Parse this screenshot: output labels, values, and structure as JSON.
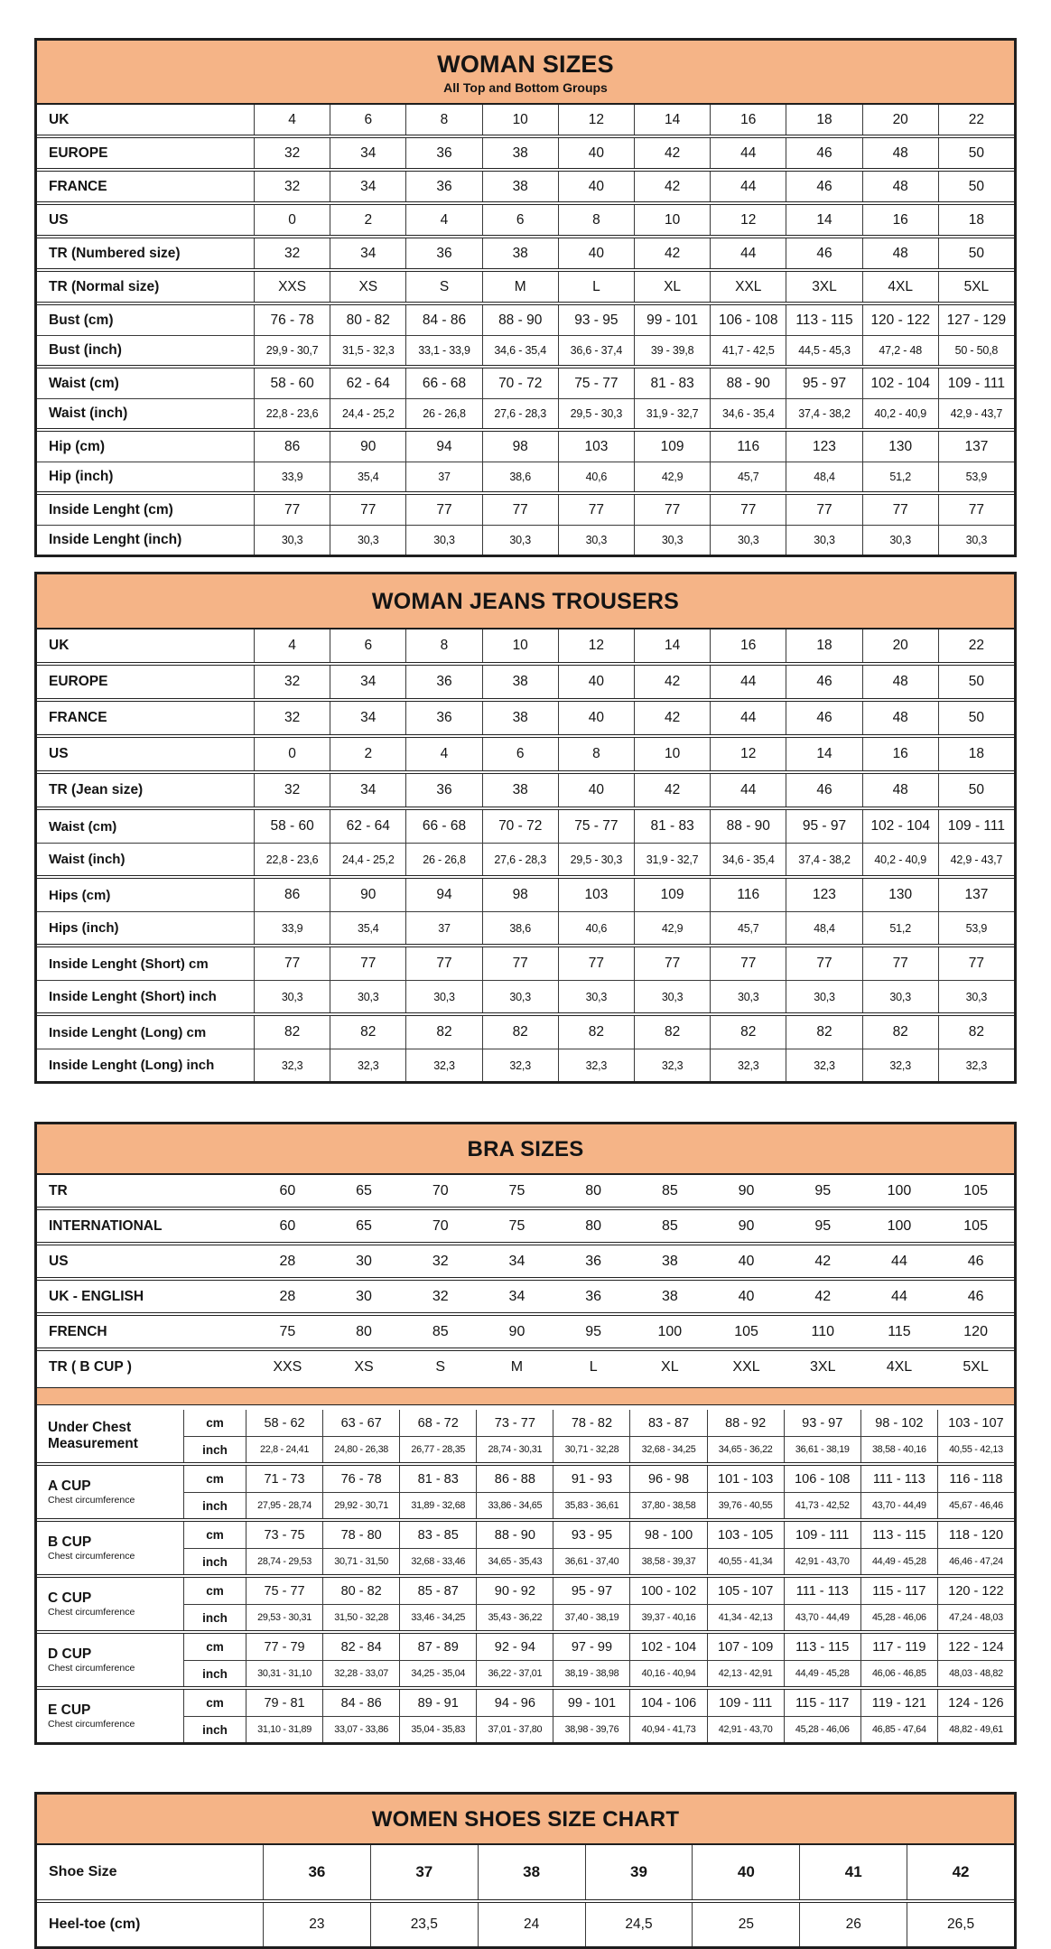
{
  "colors": {
    "header_bg": "#f5b487",
    "border": "#1e1e1e"
  },
  "woman_sizes": {
    "title": "WOMAN SIZES",
    "subtitle": "All Top and Bottom Groups",
    "groups": [
      [
        {
          "label": "UK",
          "values": [
            "4",
            "6",
            "8",
            "10",
            "12",
            "14",
            "16",
            "18",
            "20",
            "22"
          ]
        }
      ],
      [
        {
          "label": "EUROPE",
          "values": [
            "32",
            "34",
            "36",
            "38",
            "40",
            "42",
            "44",
            "46",
            "48",
            "50"
          ]
        }
      ],
      [
        {
          "label": "FRANCE",
          "values": [
            "32",
            "34",
            "36",
            "38",
            "40",
            "42",
            "44",
            "46",
            "48",
            "50"
          ]
        }
      ],
      [
        {
          "label": "US",
          "values": [
            "0",
            "2",
            "4",
            "6",
            "8",
            "10",
            "12",
            "14",
            "16",
            "18"
          ]
        }
      ],
      [
        {
          "label": "TR (Numbered size)",
          "values": [
            "32",
            "34",
            "36",
            "38",
            "40",
            "42",
            "44",
            "46",
            "48",
            "50"
          ]
        }
      ],
      [
        {
          "label": "TR (Normal size)",
          "values": [
            "XXS",
            "XS",
            "S",
            "M",
            "L",
            "XL",
            "XXL",
            "3XL",
            "4XL",
            "5XL"
          ]
        }
      ],
      [
        {
          "label": "Bust (cm)",
          "values": [
            "76 - 78",
            "80 - 82",
            "84 - 86",
            "88 - 90",
            "93 - 95",
            "99 - 101",
            "106 - 108",
            "113 - 115",
            "120 - 122",
            "127 - 129"
          ]
        },
        {
          "label": "Bust (inch)",
          "values": [
            "29,9 - 30,7",
            "31,5 - 32,3",
            "33,1 - 33,9",
            "34,6 - 35,4",
            "36,6 - 37,4",
            "39 - 39,8",
            "41,7 - 42,5",
            "44,5 - 45,3",
            "47,2 - 48",
            "50 - 50,8"
          ]
        }
      ],
      [
        {
          "label": "Waist (cm)",
          "values": [
            "58 - 60",
            "62 - 64",
            "66 - 68",
            "70 - 72",
            "75 - 77",
            "81 - 83",
            "88 - 90",
            "95 - 97",
            "102 - 104",
            "109 - 111"
          ]
        },
        {
          "label": "Waist (inch)",
          "values": [
            "22,8 - 23,6",
            "24,4 - 25,2",
            "26 - 26,8",
            "27,6 - 28,3",
            "29,5 - 30,3",
            "31,9 - 32,7",
            "34,6 - 35,4",
            "37,4 - 38,2",
            "40,2 - 40,9",
            "42,9 - 43,7"
          ]
        }
      ],
      [
        {
          "label": "Hip (cm)",
          "values": [
            "86",
            "90",
            "94",
            "98",
            "103",
            "109",
            "116",
            "123",
            "130",
            "137"
          ]
        },
        {
          "label": "Hip (inch)",
          "values": [
            "33,9",
            "35,4",
            "37",
            "38,6",
            "40,6",
            "42,9",
            "45,7",
            "48,4",
            "51,2",
            "53,9"
          ]
        }
      ],
      [
        {
          "label": "Inside Lenght (cm)",
          "values": [
            "77",
            "77",
            "77",
            "77",
            "77",
            "77",
            "77",
            "77",
            "77",
            "77"
          ]
        },
        {
          "label": "Inside Lenght (inch)",
          "values": [
            "30,3",
            "30,3",
            "30,3",
            "30,3",
            "30,3",
            "30,3",
            "30,3",
            "30,3",
            "30,3",
            "30,3"
          ]
        }
      ]
    ]
  },
  "jeans": {
    "title": "WOMAN JEANS TROUSERS",
    "groups": [
      [
        {
          "label": "UK",
          "values": [
            "4",
            "6",
            "8",
            "10",
            "12",
            "14",
            "16",
            "18",
            "20",
            "22"
          ]
        }
      ],
      [
        {
          "label": "EUROPE",
          "values": [
            "32",
            "34",
            "36",
            "38",
            "40",
            "42",
            "44",
            "46",
            "48",
            "50"
          ]
        }
      ],
      [
        {
          "label": "FRANCE",
          "values": [
            "32",
            "34",
            "36",
            "38",
            "40",
            "42",
            "44",
            "46",
            "48",
            "50"
          ]
        }
      ],
      [
        {
          "label": "US",
          "values": [
            "0",
            "2",
            "4",
            "6",
            "8",
            "10",
            "12",
            "14",
            "16",
            "18"
          ]
        }
      ],
      [
        {
          "label": "TR (Jean size)",
          "values": [
            "32",
            "34",
            "36",
            "38",
            "40",
            "42",
            "44",
            "46",
            "48",
            "50"
          ]
        }
      ],
      [
        {
          "label": "Waist (cm)",
          "values": [
            "58 - 60",
            "62 - 64",
            "66 - 68",
            "70 - 72",
            "75 - 77",
            "81 - 83",
            "88 - 90",
            "95 - 97",
            "102 - 104",
            "109 - 111"
          ]
        },
        {
          "label": "Waist (inch)",
          "values": [
            "22,8 - 23,6",
            "24,4 - 25,2",
            "26 - 26,8",
            "27,6 - 28,3",
            "29,5 - 30,3",
            "31,9 - 32,7",
            "34,6 - 35,4",
            "37,4 - 38,2",
            "40,2 - 40,9",
            "42,9 - 43,7"
          ]
        }
      ],
      [
        {
          "label": "Hips (cm)",
          "values": [
            "86",
            "90",
            "94",
            "98",
            "103",
            "109",
            "116",
            "123",
            "130",
            "137"
          ]
        },
        {
          "label": "Hips (inch)",
          "values": [
            "33,9",
            "35,4",
            "37",
            "38,6",
            "40,6",
            "42,9",
            "45,7",
            "48,4",
            "51,2",
            "53,9"
          ]
        }
      ],
      [
        {
          "label": "Inside Lenght (Short) cm",
          "values": [
            "77",
            "77",
            "77",
            "77",
            "77",
            "77",
            "77",
            "77",
            "77",
            "77"
          ]
        },
        {
          "label": "Inside Lenght (Short) inch",
          "values": [
            "30,3",
            "30,3",
            "30,3",
            "30,3",
            "30,3",
            "30,3",
            "30,3",
            "30,3",
            "30,3",
            "30,3"
          ]
        }
      ],
      [
        {
          "label": "Inside Lenght (Long) cm",
          "values": [
            "82",
            "82",
            "82",
            "82",
            "82",
            "82",
            "82",
            "82",
            "82",
            "82"
          ]
        },
        {
          "label": "Inside Lenght (Long) inch",
          "values": [
            "32,3",
            "32,3",
            "32,3",
            "32,3",
            "32,3",
            "32,3",
            "32,3",
            "32,3",
            "32,3",
            "32,3"
          ]
        }
      ]
    ]
  },
  "bra": {
    "title": "BRA SIZES",
    "conversion_groups": [
      [
        {
          "label": "TR",
          "values": [
            "60",
            "65",
            "70",
            "75",
            "80",
            "85",
            "90",
            "95",
            "100",
            "105"
          ]
        }
      ],
      [
        {
          "label": "INTERNATIONAL",
          "values": [
            "60",
            "65",
            "70",
            "75",
            "80",
            "85",
            "90",
            "95",
            "100",
            "105"
          ]
        }
      ],
      [
        {
          "label": "US",
          "values": [
            "28",
            "30",
            "32",
            "34",
            "36",
            "38",
            "40",
            "42",
            "44",
            "46"
          ]
        }
      ],
      [
        {
          "label": "UK - ENGLISH",
          "values": [
            "28",
            "30",
            "32",
            "34",
            "36",
            "38",
            "40",
            "42",
            "44",
            "46"
          ]
        }
      ],
      [
        {
          "label": "FRENCH",
          "values": [
            "75",
            "80",
            "85",
            "90",
            "95",
            "100",
            "105",
            "110",
            "115",
            "120"
          ]
        }
      ],
      [
        {
          "label": "TR ( B CUP )",
          "values": [
            "XXS",
            "XS",
            "S",
            "M",
            "L",
            "XL",
            "XXL",
            "3XL",
            "4XL",
            "5XL"
          ]
        }
      ]
    ],
    "measurement_groups": [
      {
        "label": "Under Chest Measurement",
        "sublabel": "",
        "cm": [
          "58 - 62",
          "63 - 67",
          "68 - 72",
          "73 - 77",
          "78 - 82",
          "83 - 87",
          "88 - 92",
          "93 - 97",
          "98 - 102",
          "103 - 107"
        ],
        "inch": [
          "22,8 - 24,41",
          "24,80 - 26,38",
          "26,77 - 28,35",
          "28,74 - 30,31",
          "30,71 - 32,28",
          "32,68 - 34,25",
          "34,65 - 36,22",
          "36,61 - 38,19",
          "38,58 - 40,16",
          "40,55 - 42,13"
        ]
      },
      {
        "label": "A CUP",
        "sublabel": "Chest circumference",
        "cm": [
          "71 - 73",
          "76 - 78",
          "81 - 83",
          "86 - 88",
          "91 - 93",
          "96 - 98",
          "101 - 103",
          "106 - 108",
          "111 - 113",
          "116 - 118"
        ],
        "inch": [
          "27,95 - 28,74",
          "29,92 - 30,71",
          "31,89 - 32,68",
          "33,86 - 34,65",
          "35,83 - 36,61",
          "37,80 - 38,58",
          "39,76 - 40,55",
          "41,73 - 42,52",
          "43,70 - 44,49",
          "45,67 - 46,46"
        ]
      },
      {
        "label": "B CUP",
        "sublabel": "Chest circumference",
        "cm": [
          "73 - 75",
          "78 - 80",
          "83 - 85",
          "88 - 90",
          "93 - 95",
          "98 - 100",
          "103 - 105",
          "109 - 111",
          "113 - 115",
          "118 - 120"
        ],
        "inch": [
          "28,74 - 29,53",
          "30,71 - 31,50",
          "32,68 - 33,46",
          "34,65 - 35,43",
          "36,61 - 37,40",
          "38,58 - 39,37",
          "40,55 - 41,34",
          "42,91 - 43,70",
          "44,49 - 45,28",
          "46,46 - 47,24"
        ]
      },
      {
        "label": "C CUP",
        "sublabel": "Chest circumference",
        "cm": [
          "75 - 77",
          "80 - 82",
          "85 - 87",
          "90 - 92",
          "95 - 97",
          "100 - 102",
          "105 - 107",
          "111 - 113",
          "115 - 117",
          "120 - 122"
        ],
        "inch": [
          "29,53 - 30,31",
          "31,50 - 32,28",
          "33,46 - 34,25",
          "35,43 - 36,22",
          "37,40 - 38,19",
          "39,37 - 40,16",
          "41,34 - 42,13",
          "43,70 - 44,49",
          "45,28 - 46,06",
          "47,24 - 48,03"
        ]
      },
      {
        "label": "D CUP",
        "sublabel": "Chest circumference",
        "cm": [
          "77 - 79",
          "82 - 84",
          "87 - 89",
          "92 - 94",
          "97 - 99",
          "102 - 104",
          "107 - 109",
          "113 - 115",
          "117 - 119",
          "122 - 124"
        ],
        "inch": [
          "30,31 - 31,10",
          "32,28 - 33,07",
          "34,25 - 35,04",
          "36,22 - 37,01",
          "38,19 - 38,98",
          "40,16 - 40,94",
          "42,13 - 42,91",
          "44,49 - 45,28",
          "46,06 - 46,85",
          "48,03 - 48,82"
        ]
      },
      {
        "label": "E CUP",
        "sublabel": "Chest circumference",
        "cm": [
          "79 - 81",
          "84 - 86",
          "89 - 91",
          "94 - 96",
          "99 - 101",
          "104 - 106",
          "109 - 111",
          "115 - 117",
          "119 - 121",
          "124 - 126"
        ],
        "inch": [
          "31,10 - 31,89",
          "33,07 - 33,86",
          "35,04 - 35,83",
          "37,01 - 37,80",
          "38,98 - 39,76",
          "40,94 - 41,73",
          "42,91 - 43,70",
          "45,28 - 46,06",
          "46,85 - 47,64",
          "48,82 - 49,61"
        ]
      }
    ]
  },
  "shoes": {
    "title": "WOMEN SHOES SIZE CHART",
    "groups": [
      [
        {
          "label": "Shoe Size",
          "values": [
            "36",
            "37",
            "38",
            "39",
            "40",
            "41",
            "42"
          ]
        }
      ],
      [
        {
          "label": "Heel-toe (cm)",
          "values": [
            "23",
            "23,5",
            "24",
            "24,5",
            "25",
            "26",
            "26,5"
          ]
        }
      ]
    ]
  }
}
